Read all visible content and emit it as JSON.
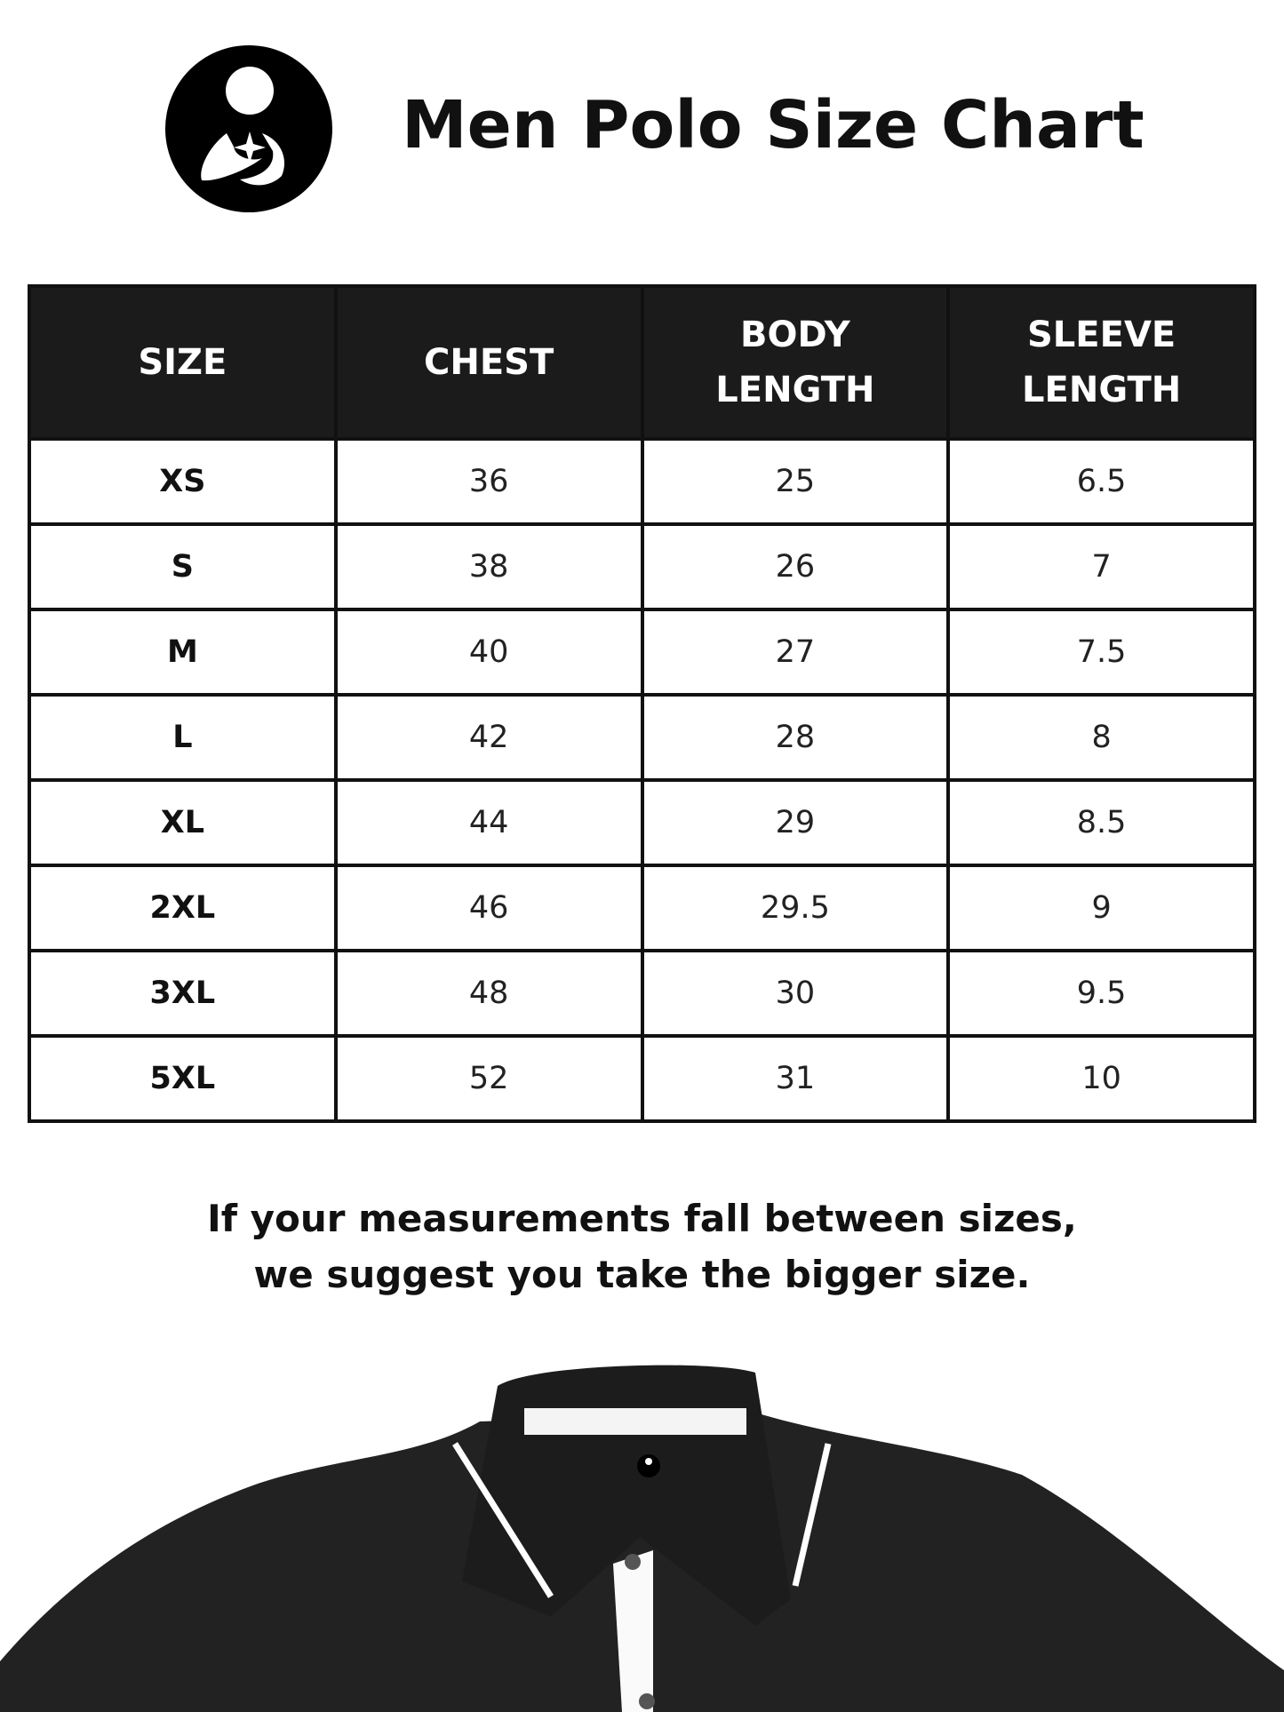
{
  "header": {
    "title": "Men Polo Size Chart",
    "logo": "brand-logo-icon"
  },
  "table": {
    "columns": [
      "SIZE",
      "CHEST",
      "BODY LENGTH",
      "SLEEVE LENGTH"
    ],
    "rows": [
      [
        "XS",
        "36",
        "25",
        "6.5"
      ],
      [
        "S",
        "38",
        "26",
        "7"
      ],
      [
        "M",
        "40",
        "27",
        "7.5"
      ],
      [
        "L",
        "42",
        "28",
        "8"
      ],
      [
        "XL",
        "44",
        "29",
        "8.5"
      ],
      [
        "2XL",
        "46",
        "29.5",
        "9"
      ],
      [
        "3XL",
        "48",
        "30",
        "9.5"
      ],
      [
        "5XL",
        "52",
        "31",
        "10"
      ]
    ]
  },
  "note": {
    "line1": "If your measurements fall between sizes,",
    "line2": "we suggest you take the bigger size."
  },
  "colors": {
    "header_bg": "#1b1b1b",
    "shirt": "#222222"
  }
}
